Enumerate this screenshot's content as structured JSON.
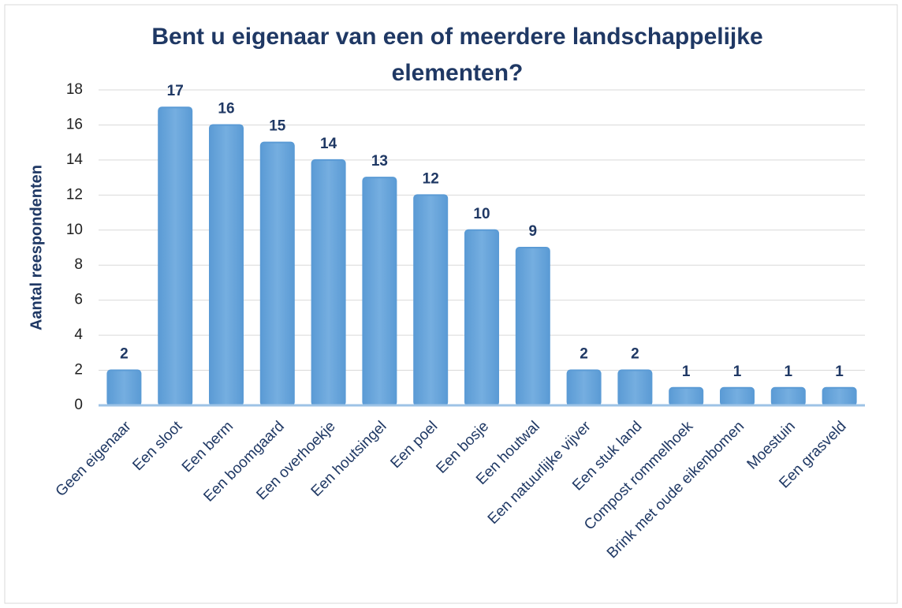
{
  "chart_data": {
    "type": "bar",
    "title": "Bent u eigenaar van een of meerdere landschappelijke elementen?",
    "y_label": "Aantal reespondenten",
    "categories": [
      "Geen eigenaar",
      "Een sloot",
      "Een berm",
      "Een boomgaard",
      "Een overhoekje",
      "Een houtsingel",
      "Een poel",
      "Een bosje",
      "Een houtwal",
      "Een natuurlijke vijver",
      "Een stuk land",
      "Compost rommelhoek",
      "Brink met oude eikenbomen",
      "Moestuin",
      "Een grasveld"
    ],
    "values": [
      2,
      17,
      16,
      15,
      14,
      13,
      12,
      10,
      9,
      2,
      2,
      1,
      1,
      1,
      1
    ],
    "color": "#5b9bd5",
    "ylim": [
      0,
      18
    ],
    "yticks": [
      0,
      2,
      4,
      6,
      8,
      10,
      12,
      14,
      16,
      18
    ],
    "grid": true
  }
}
